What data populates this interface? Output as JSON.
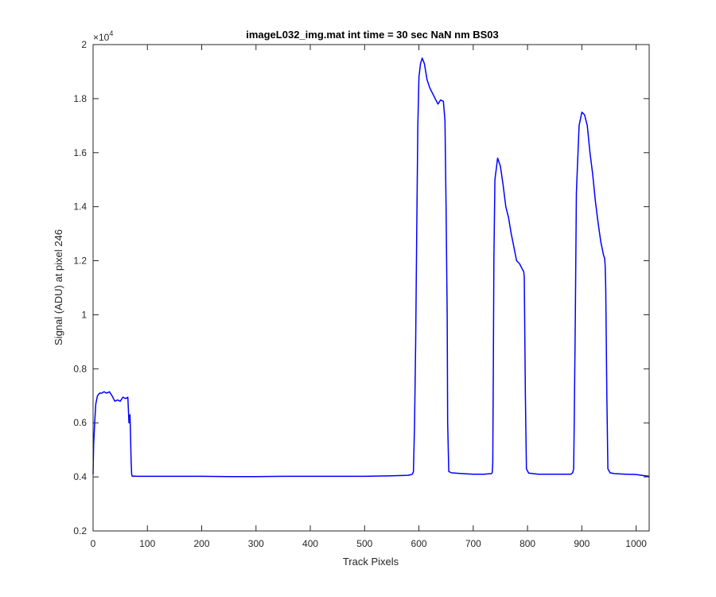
{
  "chart_data": {
    "type": "line",
    "title": "imageL032_img.mat int time = 30 sec  NaN nm BS03",
    "xlabel": "Track Pixels",
    "ylabel": "Signal (ADU) at pixel 246",
    "y_exponent_label": "×10",
    "y_exponent_power": "4",
    "xlim": [
      0,
      1024
    ],
    "ylim": [
      0.2,
      2
    ],
    "xticks": [
      0,
      100,
      200,
      300,
      400,
      500,
      600,
      700,
      800,
      900,
      1000
    ],
    "xtick_labels": [
      "0",
      "100",
      "200",
      "300",
      "400",
      "500",
      "600",
      "700",
      "800",
      "900",
      "1000"
    ],
    "yticks": [
      0.2,
      0.4,
      0.6,
      0.8,
      1.0,
      1.2,
      1.4,
      1.6,
      1.8,
      2.0
    ],
    "ytick_labels": [
      "0.2",
      "0.4",
      "0.6",
      "0.8",
      "1",
      "1.2",
      "1.4",
      "1.6",
      "1.8",
      "2"
    ],
    "grid": false,
    "line_color": "#0000ff",
    "series": [
      {
        "x": [
          0,
          1,
          3,
          5,
          8,
          12,
          16,
          20,
          25,
          30,
          35,
          40,
          45,
          50,
          55,
          60,
          64,
          66,
          68,
          69,
          70,
          71,
          72,
          74,
          76,
          80,
          100,
          150,
          200,
          250,
          300,
          350,
          400,
          450,
          500,
          550,
          580,
          585,
          588,
          590,
          592,
          594,
          596,
          598,
          600,
          603,
          606,
          610,
          615,
          620,
          625,
          630,
          635,
          640,
          645,
          648,
          650,
          652,
          653,
          655,
          660,
          680,
          700,
          720,
          733,
          735,
          736,
          737,
          738,
          740,
          745,
          750,
          755,
          760,
          765,
          770,
          775,
          780,
          785,
          790,
          793,
          794,
          796,
          798,
          802,
          820,
          850,
          870,
          880,
          883,
          885,
          886,
          888,
          890,
          895,
          900,
          905,
          910,
          915,
          920,
          925,
          930,
          935,
          940,
          942,
          943,
          944,
          946,
          948,
          952,
          960,
          980,
          1000,
          1010,
          1024
        ],
        "y": [
          0.41,
          0.52,
          0.6,
          0.67,
          0.7,
          0.71,
          0.71,
          0.715,
          0.71,
          0.715,
          0.7,
          0.68,
          0.685,
          0.68,
          0.695,
          0.69,
          0.695,
          0.6,
          0.63,
          0.55,
          0.46,
          0.41,
          0.403,
          0.402,
          0.403,
          0.402,
          0.402,
          0.402,
          0.402,
          0.401,
          0.401,
          0.402,
          0.402,
          0.402,
          0.402,
          0.404,
          0.406,
          0.408,
          0.41,
          0.42,
          0.6,
          0.9,
          1.3,
          1.7,
          1.88,
          1.93,
          1.95,
          1.93,
          1.87,
          1.84,
          1.82,
          1.8,
          1.78,
          1.795,
          1.79,
          1.72,
          1.4,
          1.0,
          0.6,
          0.42,
          0.415,
          0.412,
          0.41,
          0.41,
          0.412,
          0.415,
          0.45,
          0.8,
          1.2,
          1.5,
          1.58,
          1.55,
          1.48,
          1.4,
          1.36,
          1.3,
          1.25,
          1.2,
          1.19,
          1.17,
          1.16,
          1.14,
          0.7,
          0.43,
          0.414,
          0.41,
          0.41,
          0.41,
          0.41,
          0.415,
          0.43,
          0.6,
          1.0,
          1.45,
          1.7,
          1.75,
          1.74,
          1.7,
          1.6,
          1.52,
          1.42,
          1.34,
          1.27,
          1.22,
          1.21,
          1.18,
          1.1,
          0.7,
          0.43,
          0.415,
          0.412,
          0.41,
          0.409,
          0.406,
          0.402
        ]
      }
    ]
  }
}
